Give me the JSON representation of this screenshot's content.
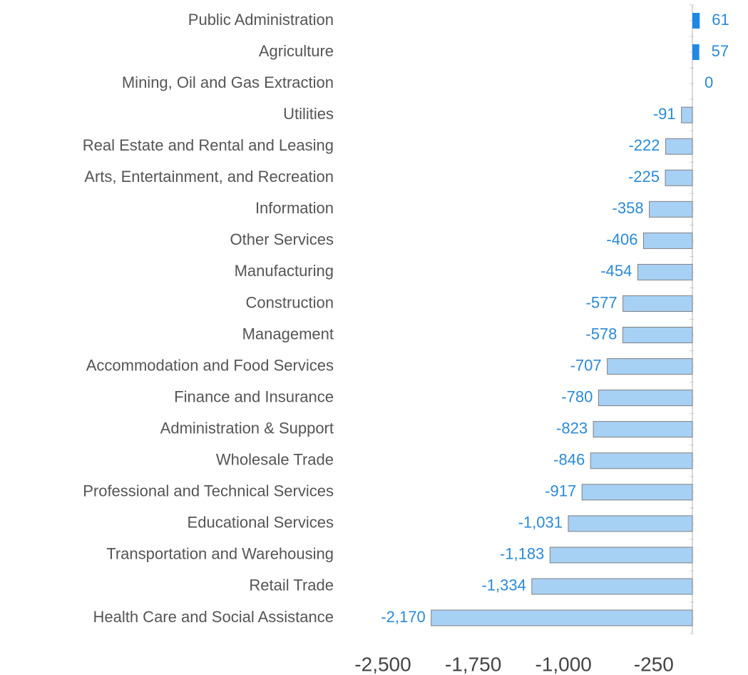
{
  "chart_data": {
    "type": "hbar",
    "categories": [
      "Public Administration",
      "Agriculture",
      "Mining, Oil and Gas Extraction",
      "Utilities",
      "Real Estate and Rental and Leasing",
      "Arts, Entertainment, and Recreation",
      "Information",
      "Other Services",
      "Manufacturing",
      "Construction",
      "Management",
      "Accommodation and Food Services",
      "Finance and Insurance",
      "Administration & Support",
      "Wholesale Trade",
      "Professional and Technical Services",
      "Educational Services",
      "Transportation and Warehousing",
      "Retail Trade",
      "Health Care and Social Assistance"
    ],
    "values": [
      61,
      57,
      0,
      -91,
      -222,
      -225,
      -358,
      -406,
      -454,
      -577,
      -578,
      -707,
      -780,
      -823,
      -846,
      -917,
      -1031,
      -1183,
      -1334,
      -2170
    ],
    "value_labels": [
      "61",
      "57",
      "0",
      "-91",
      "-222",
      "-225",
      "-358",
      "-406",
      "-454",
      "-577",
      "-578",
      "-707",
      "-780",
      "-823",
      "-846",
      "-917",
      "-1,031",
      "-1,183",
      "-1,334",
      "-2,170"
    ],
    "xlim": [
      -2500,
      0
    ],
    "xticks": [
      {
        "value": -2500,
        "label": "-2,500"
      },
      {
        "value": -1750,
        "label": "-1,750"
      },
      {
        "value": -1000,
        "label": "-1,000"
      },
      -250
    ],
    "positive_color": "#1e88e5",
    "negative_color": "#a7d0f5"
  }
}
